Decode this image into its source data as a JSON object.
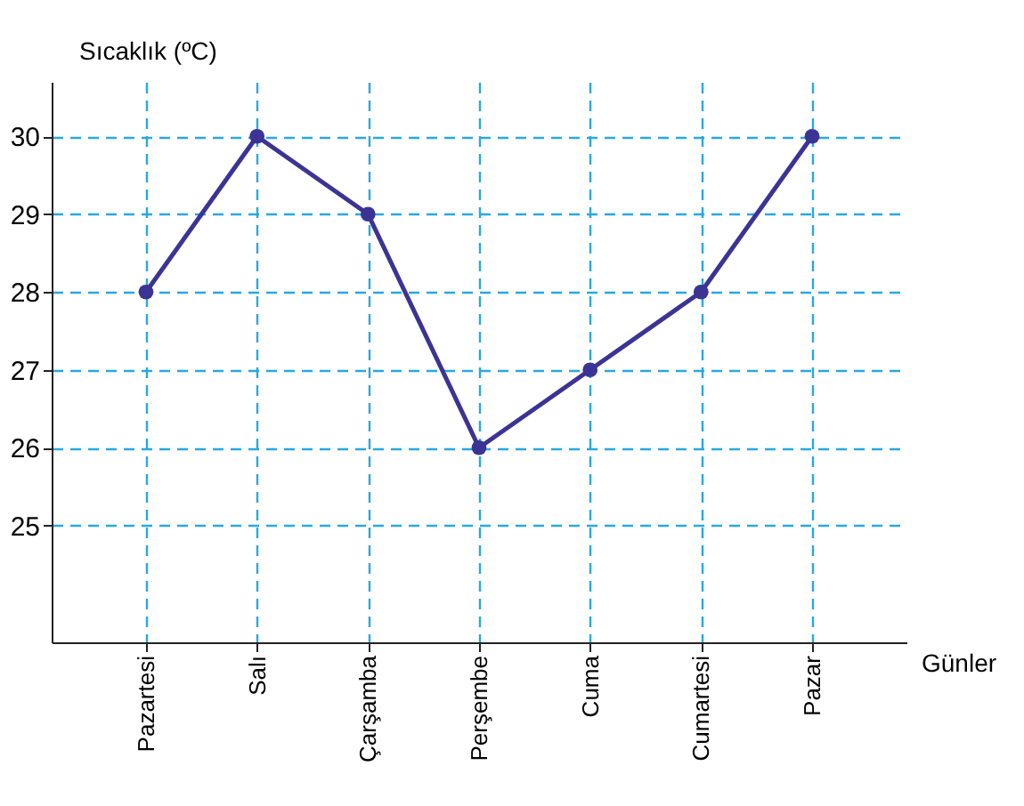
{
  "chart_data": {
    "type": "line",
    "xlabel": "Günler",
    "ylabel": "Sıcaklık (ºC)",
    "categories": [
      "Pazartesi",
      "Salı",
      "Çarşamba",
      "Perşembe",
      "Cuma",
      "Cumartesi",
      "Pazar"
    ],
    "series": [
      {
        "color": "#3b3494",
        "values": [
          28,
          30,
          29,
          26,
          27,
          28,
          30
        ]
      }
    ],
    "ylim": [
      23.5,
      30.7
    ],
    "yticks": [
      25,
      26,
      27,
      28,
      29,
      30
    ],
    "grid": true,
    "marker": "circle",
    "line_style": "solid"
  }
}
